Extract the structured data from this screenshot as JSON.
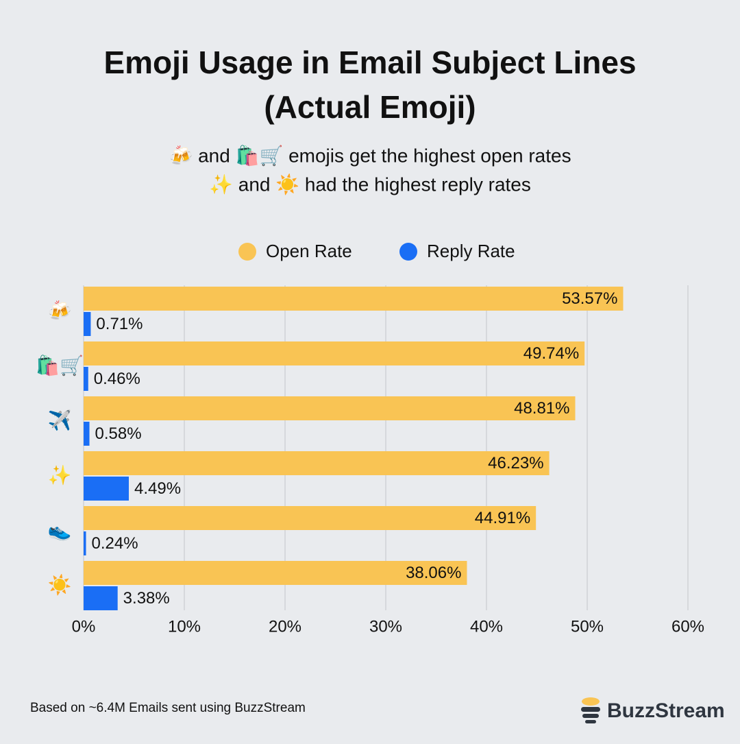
{
  "chart_data": {
    "type": "hbar",
    "title": [
      "Emoji Usage in Email Subject Lines",
      "(Actual Emoji)"
    ],
    "subtitle": [
      "🍻 and 🛍️🛒 emojis get the highest open rates",
      "✨ and ☀️ had the highest reply rates"
    ],
    "categories": [
      "🍻",
      "🛍️🛒",
      "✈️",
      "✨",
      "👟",
      "☀️"
    ],
    "series": [
      {
        "name": "Open Rate",
        "color": "#f9c454",
        "values": [
          53.57,
          49.74,
          48.81,
          46.23,
          44.91,
          38.06
        ],
        "value_labels": [
          "53.57%",
          "49.74%",
          "48.81%",
          "46.23%",
          "44.91%",
          "38.06%"
        ]
      },
      {
        "name": "Reply Rate",
        "color": "#1a6ef5",
        "values": [
          0.71,
          0.46,
          0.58,
          4.49,
          0.24,
          3.38
        ],
        "value_labels": [
          "0.71%",
          "0.46%",
          "0.58%",
          "4.49%",
          "0.24%",
          "3.38%"
        ]
      }
    ],
    "xlim": [
      0,
      60
    ],
    "xticks": [
      {
        "value": 0,
        "label": "0%"
      },
      {
        "value": 10,
        "label": "10%"
      },
      {
        "value": 20,
        "label": "20%"
      },
      {
        "value": 30,
        "label": "30%"
      },
      {
        "value": 40,
        "label": "40%"
      },
      {
        "value": 50,
        "label": "50%"
      },
      {
        "value": 60,
        "label": "60%"
      }
    ],
    "grid": true,
    "legend": "top",
    "source": "Based on ~6.4M Emails sent using BuzzStream",
    "brand": "BuzzStream"
  }
}
